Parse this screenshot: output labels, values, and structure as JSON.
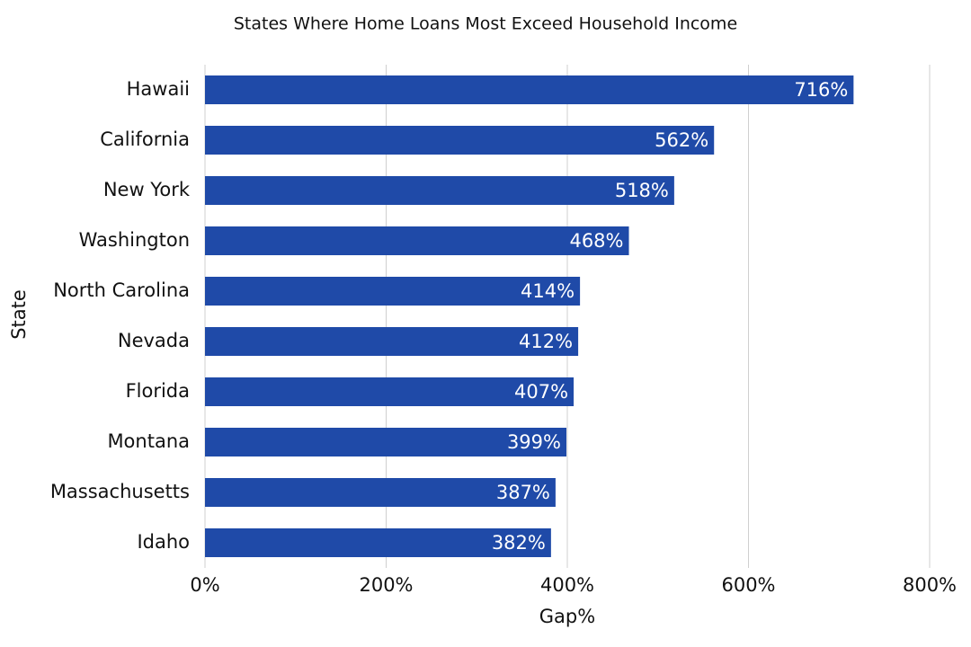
{
  "chart_data": {
    "type": "bar",
    "orientation": "horizontal",
    "subtitle": "States Where Home Loans Most Exceed Household Income",
    "x_label": "Gap%",
    "y_label": "State",
    "categories": [
      "Hawaii",
      "California",
      "New York",
      "Washington",
      "North Carolina",
      "Nevada",
      "Florida",
      "Montana",
      "Massachusetts",
      "Idaho"
    ],
    "values": [
      716,
      562,
      518,
      468,
      414,
      412,
      407,
      399,
      387,
      382
    ],
    "value_labels": [
      "716%",
      "562%",
      "518%",
      "468%",
      "414%",
      "412%",
      "407%",
      "399%",
      "387%",
      "382%"
    ],
    "color": "#1f4aa8",
    "xlim": [
      0,
      800
    ],
    "xticks": [
      {
        "value": 0,
        "label": "0%"
      },
      {
        "value": 200,
        "label": "200%"
      },
      {
        "value": 400,
        "label": "400%"
      },
      {
        "value": 600,
        "label": "600%"
      },
      {
        "value": 800,
        "label": "800%"
      }
    ],
    "grid": true
  }
}
